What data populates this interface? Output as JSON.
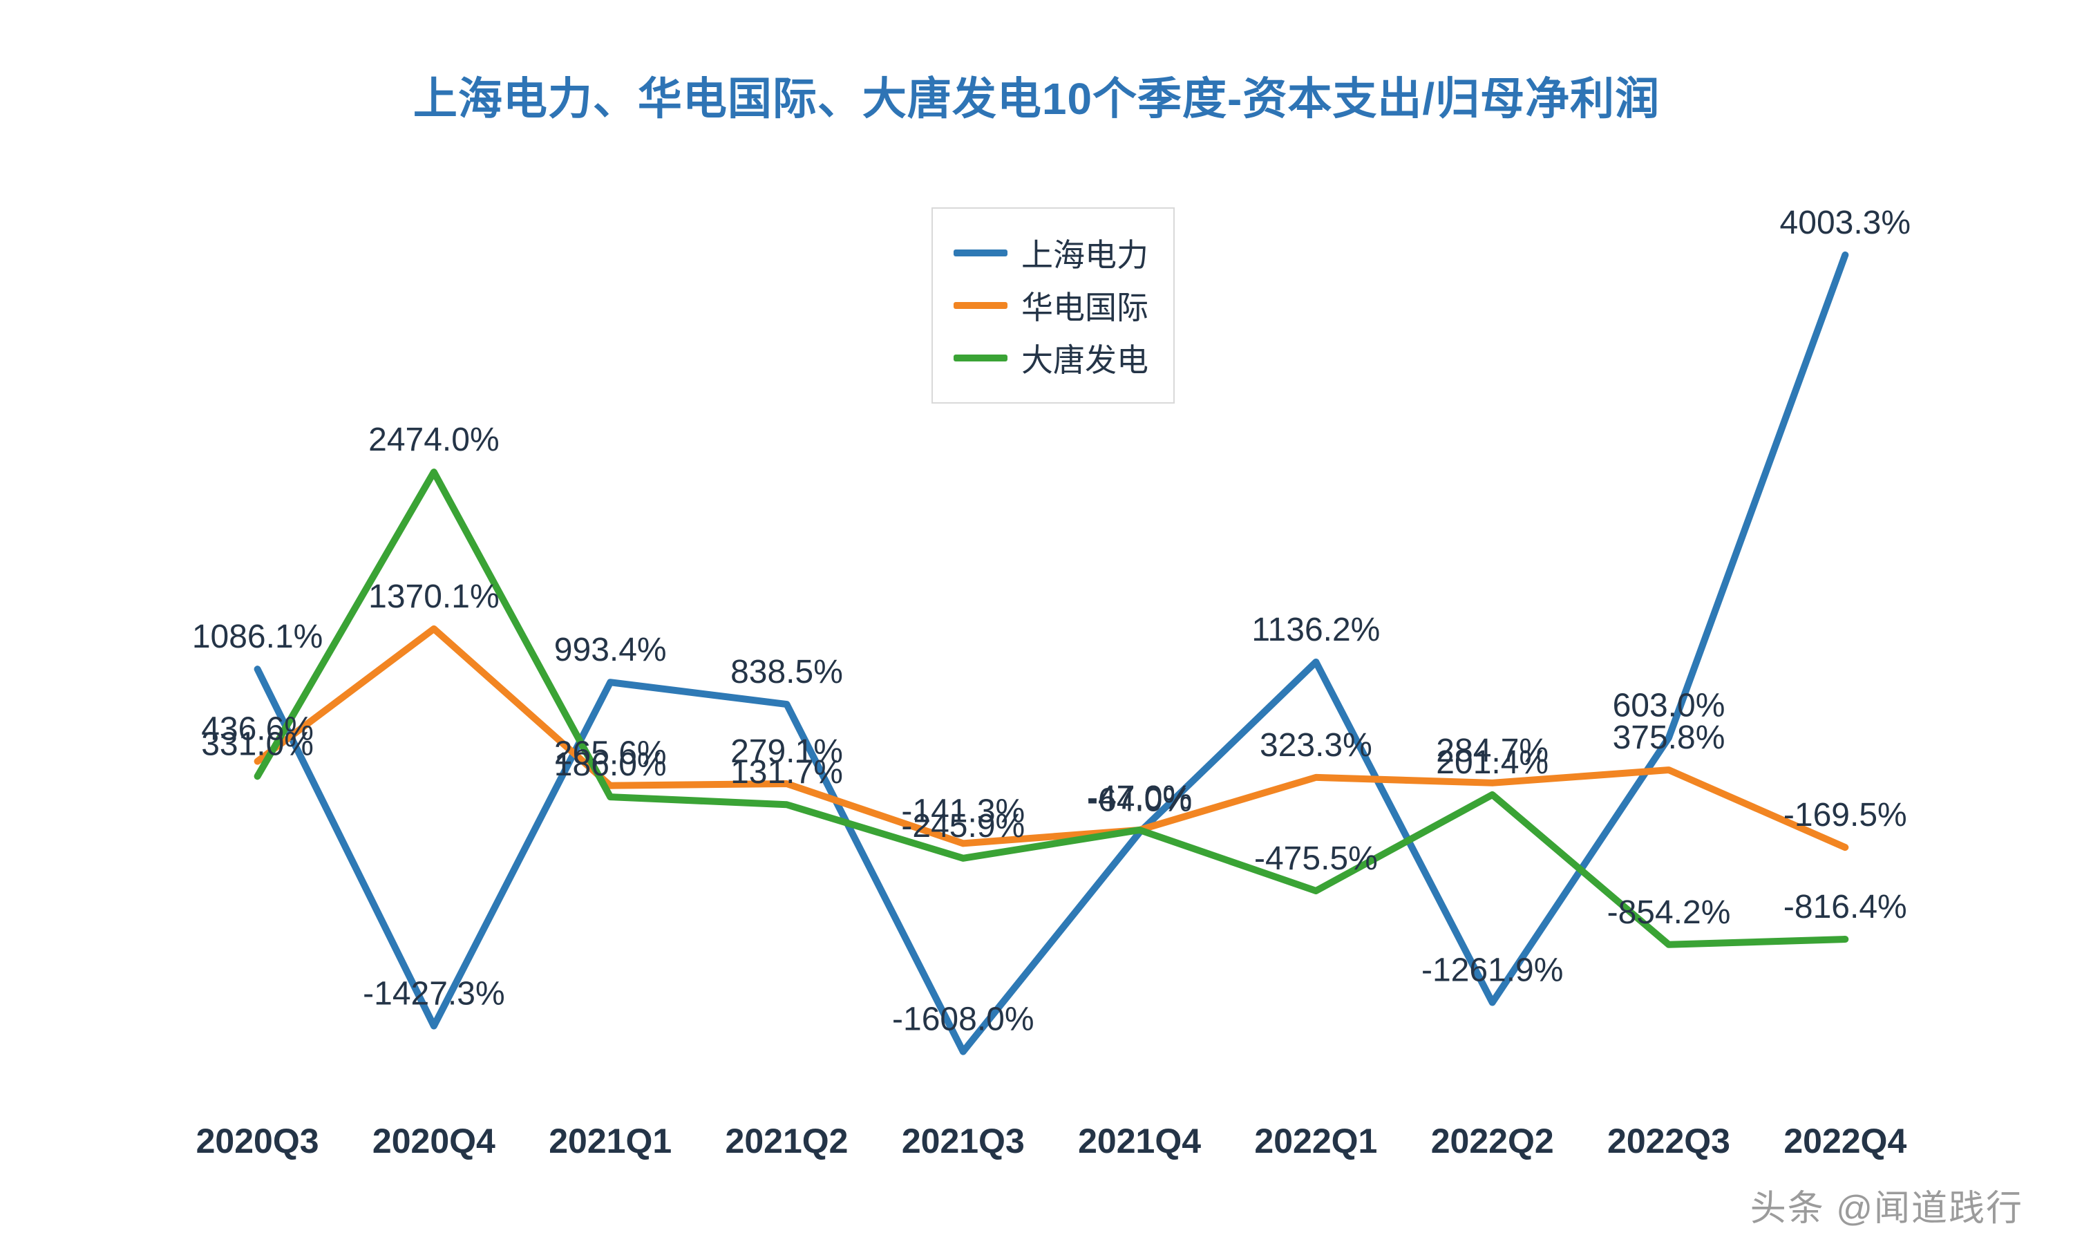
{
  "title": "上海电力、华电国际、大唐发电10个季度-资本支出/归母净利润",
  "watermark": "头条 @闻道践行",
  "colors": {
    "title": "#2e74b5",
    "label": "#243447",
    "axis_label": "#243447",
    "watermark": "#9b9b9b",
    "background": "#ffffff"
  },
  "chart_data": {
    "type": "line",
    "title": "上海电力、华电国际、大唐发电10个季度-资本支出/归母净利润",
    "xlabel": "",
    "ylabel": "",
    "ylim": [
      -1800,
      4200
    ],
    "grid": false,
    "legend_position": "top-center",
    "unit": "%",
    "categories": [
      "2020Q3",
      "2020Q4",
      "2021Q1",
      "2021Q2",
      "2021Q3",
      "2021Q4",
      "2022Q1",
      "2022Q2",
      "2022Q3",
      "2022Q4"
    ],
    "series": [
      {
        "name": "上海电力",
        "color": "#2e79b5",
        "values": [
          1086.1,
          -1427.3,
          993.4,
          838.5,
          -1608.0,
          -64.0,
          1136.2,
          -1261.9,
          603.0,
          4003.3
        ]
      },
      {
        "name": "华电国际",
        "color": "#f28522",
        "values": [
          436.6,
          1370.1,
          265.6,
          279.1,
          -141.3,
          -47.0,
          323.3,
          284.7,
          375.8,
          -169.5
        ]
      },
      {
        "name": "大唐发电",
        "color": "#3aa335",
        "values": [
          331.0,
          2474.0,
          186.0,
          131.7,
          -245.9,
          -47.0,
          -475.5,
          201.4,
          -854.2,
          -816.4
        ]
      }
    ]
  }
}
